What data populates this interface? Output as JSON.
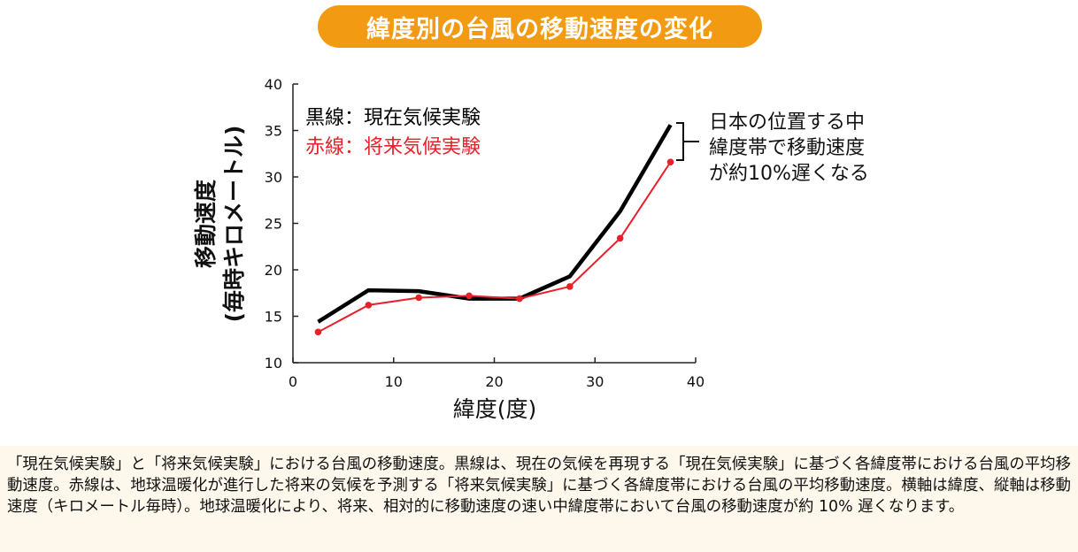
{
  "header": {
    "title": "緯度別の台風の移動速度の変化"
  },
  "chart_data": {
    "type": "line",
    "title": "緯度別の台風の移動速度の変化",
    "xlabel": "緯度(度)",
    "ylabel_line1": "移動速度",
    "ylabel_line2": "(毎時キロメートル)",
    "xlim": [
      0,
      40
    ],
    "ylim": [
      10,
      40
    ],
    "xticks": [
      0,
      10,
      20,
      30,
      40
    ],
    "yticks": [
      10,
      15,
      20,
      25,
      30,
      35,
      40
    ],
    "grid": false,
    "series": [
      {
        "name": "現在気候実験",
        "legend_label": "黒線：現在気候実験",
        "color": "#000000",
        "markers": false,
        "x": [
          2.5,
          7.5,
          12.5,
          17.5,
          22.5,
          27.5,
          32.5,
          37.5
        ],
        "y": [
          14.4,
          17.8,
          17.7,
          16.9,
          16.9,
          19.3,
          26.3,
          35.6
        ]
      },
      {
        "name": "将来気候実験",
        "legend_label": "赤線：将来気候実験",
        "color": "#e8202a",
        "markers": true,
        "x": [
          2.5,
          7.5,
          12.5,
          17.5,
          22.5,
          27.5,
          32.5,
          37.5
        ],
        "y": [
          13.3,
          16.2,
          17.0,
          17.2,
          16.9,
          18.2,
          23.4,
          31.6
        ]
      }
    ],
    "annotation": {
      "lines": [
        "日本の位置する中",
        "緯度帯で移動速度",
        "が約10%遅くなる"
      ]
    }
  },
  "caption": {
    "text": "「現在気候実験」と「将来気候実験」における台風の移動速度。黒線は、現在の気候を再現する「現在気候実験」に基づく各緯度帯における台風の平均移動速度。赤線は、地球温暖化が進行した将来の気候を予測する「将来気候実験」に基づく各緯度帯における台風の平均移動速度。横軸は緯度、縦軸は移動速度（キロメートル毎時）。地球温暖化により、将来、相対的に移動速度の速い中緯度帯において台風の移動速度が約 10% 遅くなります。"
  }
}
